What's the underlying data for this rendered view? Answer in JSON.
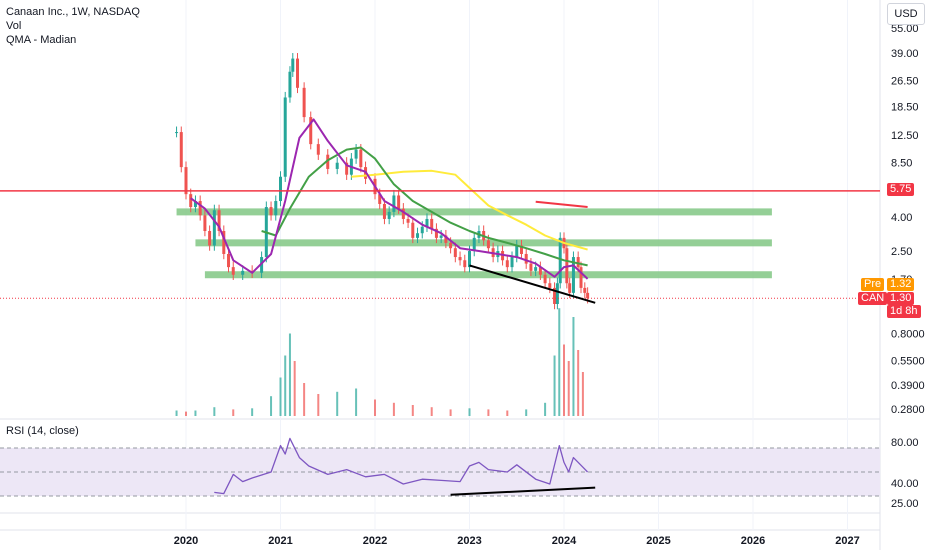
{
  "header": {
    "symbol_line": "Canaan Inc., 1W, NASDAQ",
    "volume_label": "Vol",
    "indicator_label": "QMA - Madian",
    "currency_button": "USD"
  },
  "rsi_panel": {
    "label": "RSI (14, close)",
    "ticks": [
      "80.00",
      "40.00",
      "25.00"
    ]
  },
  "price_badges": {
    "resistance": "5.75",
    "pre_label": "Pre",
    "pre_value": "1.32",
    "symbol": "CAN",
    "last_value": "1.30",
    "countdown": "1d 8h"
  },
  "colors": {
    "up": "#26a69a",
    "down": "#ef5350",
    "resistance_line": "#f23645",
    "support_zone": "#81c784",
    "ma_purple": "#9c27b0",
    "ma_green": "#43a047",
    "ma_yellow": "#ffeb3b",
    "rsi_line": "#7e57c2",
    "rsi_band": "#ede7f6",
    "trendline": "#000000",
    "pre_badge": "#ff9800",
    "last_badge": "#f23645"
  },
  "chart_data": {
    "type": "line",
    "price_scale": "log",
    "price_ticks": [
      "55.00",
      "39.00",
      "26.50",
      "18.50",
      "12.50",
      "8.50",
      "4.00",
      "2.50",
      "1.70",
      "0.8000",
      "0.5500",
      "0.3900",
      "0.2800"
    ],
    "x_ticks": [
      "2020",
      "2021",
      "2022",
      "2023",
      "2024",
      "2025",
      "2026",
      "2027"
    ],
    "resistance_level": 5.75,
    "support_zones": [
      {
        "level": 4.3,
        "start": 2019.9,
        "end": 2026.2
      },
      {
        "level": 2.8,
        "start": 2020.1,
        "end": 2026.2
      },
      {
        "level": 1.8,
        "start": 2020.2,
        "end": 2026.2
      }
    ],
    "price_series": [
      {
        "x": 2019.9,
        "close": 13.0
      },
      {
        "x": 2019.95,
        "close": 8.0
      },
      {
        "x": 2020.0,
        "close": 5.5
      },
      {
        "x": 2020.05,
        "close": 4.6
      },
      {
        "x": 2020.1,
        "close": 5.0
      },
      {
        "x": 2020.15,
        "close": 4.1
      },
      {
        "x": 2020.2,
        "close": 3.3
      },
      {
        "x": 2020.25,
        "close": 2.7
      },
      {
        "x": 2020.3,
        "close": 4.4
      },
      {
        "x": 2020.35,
        "close": 3.3
      },
      {
        "x": 2020.4,
        "close": 2.4
      },
      {
        "x": 2020.45,
        "close": 2.0
      },
      {
        "x": 2020.5,
        "close": 1.8
      },
      {
        "x": 2020.6,
        "close": 1.9
      },
      {
        "x": 2020.7,
        "close": 1.85
      },
      {
        "x": 2020.8,
        "close": 2.3
      },
      {
        "x": 2020.85,
        "close": 4.6
      },
      {
        "x": 2020.9,
        "close": 4.1
      },
      {
        "x": 2020.95,
        "close": 5.0
      },
      {
        "x": 2021.0,
        "close": 7.0
      },
      {
        "x": 2021.05,
        "close": 21.0
      },
      {
        "x": 2021.1,
        "close": 30.0
      },
      {
        "x": 2021.13,
        "close": 36.0
      },
      {
        "x": 2021.18,
        "close": 24.0
      },
      {
        "x": 2021.25,
        "close": 16.0
      },
      {
        "x": 2021.32,
        "close": 11.0
      },
      {
        "x": 2021.4,
        "close": 9.5
      },
      {
        "x": 2021.5,
        "close": 7.8
      },
      {
        "x": 2021.6,
        "close": 8.5
      },
      {
        "x": 2021.7,
        "close": 7.2
      },
      {
        "x": 2021.75,
        "close": 9.0
      },
      {
        "x": 2021.8,
        "close": 10.2
      },
      {
        "x": 2021.85,
        "close": 8.0
      },
      {
        "x": 2021.9,
        "close": 6.8
      },
      {
        "x": 2022.0,
        "close": 5.5
      },
      {
        "x": 2022.05,
        "close": 4.8
      },
      {
        "x": 2022.1,
        "close": 3.9
      },
      {
        "x": 2022.15,
        "close": 4.3
      },
      {
        "x": 2022.2,
        "close": 5.4
      },
      {
        "x": 2022.25,
        "close": 4.5
      },
      {
        "x": 2022.3,
        "close": 3.9
      },
      {
        "x": 2022.35,
        "close": 3.7
      },
      {
        "x": 2022.4,
        "close": 3.0
      },
      {
        "x": 2022.45,
        "close": 3.2
      },
      {
        "x": 2022.5,
        "close": 3.5
      },
      {
        "x": 2022.55,
        "close": 3.9
      },
      {
        "x": 2022.6,
        "close": 3.4
      },
      {
        "x": 2022.65,
        "close": 3.0
      },
      {
        "x": 2022.7,
        "close": 3.1
      },
      {
        "x": 2022.75,
        "close": 2.8
      },
      {
        "x": 2022.8,
        "close": 2.6
      },
      {
        "x": 2022.85,
        "close": 2.3
      },
      {
        "x": 2022.9,
        "close": 2.2
      },
      {
        "x": 2022.95,
        "close": 2.0
      },
      {
        "x": 2023.0,
        "close": 2.5
      },
      {
        "x": 2023.05,
        "close": 3.0
      },
      {
        "x": 2023.1,
        "close": 3.3
      },
      {
        "x": 2023.15,
        "close": 2.9
      },
      {
        "x": 2023.2,
        "close": 2.6
      },
      {
        "x": 2023.25,
        "close": 2.3
      },
      {
        "x": 2023.3,
        "close": 2.5
      },
      {
        "x": 2023.35,
        "close": 2.2
      },
      {
        "x": 2023.4,
        "close": 2.0
      },
      {
        "x": 2023.45,
        "close": 2.3
      },
      {
        "x": 2023.5,
        "close": 2.7
      },
      {
        "x": 2023.55,
        "close": 2.4
      },
      {
        "x": 2023.6,
        "close": 2.1
      },
      {
        "x": 2023.65,
        "close": 1.9
      },
      {
        "x": 2023.7,
        "close": 2.0
      },
      {
        "x": 2023.75,
        "close": 1.8
      },
      {
        "x": 2023.8,
        "close": 1.6
      },
      {
        "x": 2023.85,
        "close": 1.5
      },
      {
        "x": 2023.9,
        "close": 1.2
      },
      {
        "x": 2023.93,
        "close": 1.6
      },
      {
        "x": 2023.96,
        "close": 3.0
      },
      {
        "x": 2024.0,
        "close": 2.6
      },
      {
        "x": 2024.03,
        "close": 1.6
      },
      {
        "x": 2024.06,
        "close": 1.4
      },
      {
        "x": 2024.1,
        "close": 2.3
      },
      {
        "x": 2024.15,
        "close": 2.0
      },
      {
        "x": 2024.18,
        "close": 1.5
      },
      {
        "x": 2024.22,
        "close": 1.4
      },
      {
        "x": 2024.25,
        "close": 1.3
      }
    ],
    "ma_purple": [
      {
        "x": 2020.05,
        "y": 5.2
      },
      {
        "x": 2020.2,
        "y": 4.5
      },
      {
        "x": 2020.35,
        "y": 3.5
      },
      {
        "x": 2020.5,
        "y": 2.2
      },
      {
        "x": 2020.7,
        "y": 1.85
      },
      {
        "x": 2020.9,
        "y": 2.4
      },
      {
        "x": 2021.05,
        "y": 5.0
      },
      {
        "x": 2021.2,
        "y": 12.0
      },
      {
        "x": 2021.35,
        "y": 15.5
      },
      {
        "x": 2021.5,
        "y": 11.5
      },
      {
        "x": 2021.7,
        "y": 8.2
      },
      {
        "x": 2021.9,
        "y": 7.5
      },
      {
        "x": 2022.1,
        "y": 5.0
      },
      {
        "x": 2022.3,
        "y": 4.3
      },
      {
        "x": 2022.5,
        "y": 3.6
      },
      {
        "x": 2022.7,
        "y": 3.2
      },
      {
        "x": 2022.9,
        "y": 2.6
      },
      {
        "x": 2023.1,
        "y": 2.5
      },
      {
        "x": 2023.3,
        "y": 2.4
      },
      {
        "x": 2023.5,
        "y": 2.3
      },
      {
        "x": 2023.7,
        "y": 2.1
      },
      {
        "x": 2023.9,
        "y": 1.75
      },
      {
        "x": 2024.0,
        "y": 2.0
      },
      {
        "x": 2024.1,
        "y": 2.05
      },
      {
        "x": 2024.25,
        "y": 1.7
      }
    ],
    "ma_green": [
      {
        "x": 2020.8,
        "y": 3.3
      },
      {
        "x": 2020.95,
        "y": 3.1
      },
      {
        "x": 2021.1,
        "y": 4.5
      },
      {
        "x": 2021.3,
        "y": 7.0
      },
      {
        "x": 2021.5,
        "y": 8.8
      },
      {
        "x": 2021.7,
        "y": 10.2
      },
      {
        "x": 2021.85,
        "y": 10.5
      },
      {
        "x": 2022.0,
        "y": 9.0
      },
      {
        "x": 2022.2,
        "y": 6.3
      },
      {
        "x": 2022.4,
        "y": 5.0
      },
      {
        "x": 2022.6,
        "y": 4.3
      },
      {
        "x": 2022.8,
        "y": 3.7
      },
      {
        "x": 2023.0,
        "y": 3.3
      },
      {
        "x": 2023.2,
        "y": 3.0
      },
      {
        "x": 2023.4,
        "y": 2.8
      },
      {
        "x": 2023.6,
        "y": 2.6
      },
      {
        "x": 2023.8,
        "y": 2.4
      },
      {
        "x": 2024.0,
        "y": 2.2
      },
      {
        "x": 2024.25,
        "y": 2.05
      }
    ],
    "ma_yellow": [
      {
        "x": 2021.75,
        "y": 7.0
      },
      {
        "x": 2022.0,
        "y": 7.2
      },
      {
        "x": 2022.3,
        "y": 7.5
      },
      {
        "x": 2022.6,
        "y": 7.6
      },
      {
        "x": 2022.85,
        "y": 7.2
      },
      {
        "x": 2023.0,
        "y": 6.0
      },
      {
        "x": 2023.2,
        "y": 4.7
      },
      {
        "x": 2023.4,
        "y": 4.1
      },
      {
        "x": 2023.6,
        "y": 3.6
      },
      {
        "x": 2023.8,
        "y": 3.1
      },
      {
        "x": 2024.0,
        "y": 2.8
      },
      {
        "x": 2024.25,
        "y": 2.55
      }
    ],
    "red_short_line": [
      {
        "x": 2023.7,
        "y": 4.95
      },
      {
        "x": 2024.25,
        "y": 4.6
      }
    ],
    "price_trendline": [
      {
        "x": 2023.0,
        "y": 2.05
      },
      {
        "x": 2024.33,
        "y": 1.22
      }
    ],
    "volume": [
      {
        "x": 2019.9,
        "v": 0.05
      },
      {
        "x": 2020.0,
        "v": 0.04
      },
      {
        "x": 2020.1,
        "v": 0.05
      },
      {
        "x": 2020.3,
        "v": 0.08
      },
      {
        "x": 2020.5,
        "v": 0.06
      },
      {
        "x": 2020.7,
        "v": 0.07
      },
      {
        "x": 2020.9,
        "v": 0.18
      },
      {
        "x": 2021.0,
        "v": 0.35
      },
      {
        "x": 2021.05,
        "v": 0.55
      },
      {
        "x": 2021.1,
        "v": 0.75
      },
      {
        "x": 2021.15,
        "v": 0.5
      },
      {
        "x": 2021.25,
        "v": 0.3
      },
      {
        "x": 2021.4,
        "v": 0.2
      },
      {
        "x": 2021.6,
        "v": 0.22
      },
      {
        "x": 2021.8,
        "v": 0.25
      },
      {
        "x": 2022.0,
        "v": 0.15
      },
      {
        "x": 2022.2,
        "v": 0.12
      },
      {
        "x": 2022.4,
        "v": 0.1
      },
      {
        "x": 2022.6,
        "v": 0.08
      },
      {
        "x": 2022.8,
        "v": 0.06
      },
      {
        "x": 2023.0,
        "v": 0.07
      },
      {
        "x": 2023.2,
        "v": 0.06
      },
      {
        "x": 2023.4,
        "v": 0.05
      },
      {
        "x": 2023.6,
        "v": 0.06
      },
      {
        "x": 2023.8,
        "v": 0.12
      },
      {
        "x": 2023.9,
        "v": 0.55
      },
      {
        "x": 2023.95,
        "v": 0.98
      },
      {
        "x": 2024.0,
        "v": 0.65
      },
      {
        "x": 2024.05,
        "v": 0.5
      },
      {
        "x": 2024.1,
        "v": 0.9
      },
      {
        "x": 2024.15,
        "v": 0.6
      },
      {
        "x": 2024.2,
        "v": 0.4
      }
    ],
    "rsi_ylim": [
      20,
      90
    ],
    "rsi_levels": {
      "upper": 70,
      "middle": 50,
      "lower": 30
    },
    "rsi": [
      {
        "x": 2020.3,
        "y": 33
      },
      {
        "x": 2020.4,
        "y": 32
      },
      {
        "x": 2020.5,
        "y": 48
      },
      {
        "x": 2020.6,
        "y": 42
      },
      {
        "x": 2020.7,
        "y": 45
      },
      {
        "x": 2020.9,
        "y": 50
      },
      {
        "x": 2021.0,
        "y": 72
      },
      {
        "x": 2021.05,
        "y": 65
      },
      {
        "x": 2021.1,
        "y": 78
      },
      {
        "x": 2021.2,
        "y": 62
      },
      {
        "x": 2021.3,
        "y": 55
      },
      {
        "x": 2021.5,
        "y": 48
      },
      {
        "x": 2021.7,
        "y": 52
      },
      {
        "x": 2021.9,
        "y": 46
      },
      {
        "x": 2022.1,
        "y": 48
      },
      {
        "x": 2022.3,
        "y": 40
      },
      {
        "x": 2022.5,
        "y": 44
      },
      {
        "x": 2022.7,
        "y": 43
      },
      {
        "x": 2022.9,
        "y": 42
      },
      {
        "x": 2023.0,
        "y": 55
      },
      {
        "x": 2023.1,
        "y": 58
      },
      {
        "x": 2023.2,
        "y": 52
      },
      {
        "x": 2023.4,
        "y": 50
      },
      {
        "x": 2023.5,
        "y": 56
      },
      {
        "x": 2023.7,
        "y": 44
      },
      {
        "x": 2023.85,
        "y": 40
      },
      {
        "x": 2023.95,
        "y": 72
      },
      {
        "x": 2024.0,
        "y": 58
      },
      {
        "x": 2024.05,
        "y": 50
      },
      {
        "x": 2024.1,
        "y": 62
      },
      {
        "x": 2024.2,
        "y": 54
      },
      {
        "x": 2024.25,
        "y": 50
      }
    ],
    "rsi_trendline": [
      {
        "x": 2022.8,
        "y": 31
      },
      {
        "x": 2024.33,
        "y": 37
      }
    ]
  }
}
